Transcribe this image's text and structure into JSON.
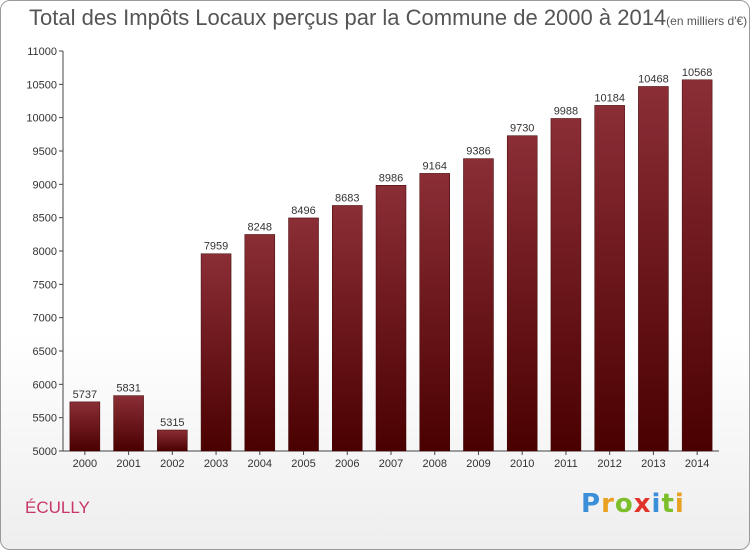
{
  "chart_data": {
    "type": "bar",
    "title": "Total des Impôts Locaux perçus par la Commune de 2000 à 2014",
    "subtitle": "(en milliers d'€)",
    "categories": [
      "2000",
      "2001",
      "2002",
      "2003",
      "2004",
      "2005",
      "2006",
      "2007",
      "2008",
      "2009",
      "2010",
      "2011",
      "2012",
      "2013",
      "2014"
    ],
    "values": [
      5737,
      5831,
      5315,
      7959,
      8248,
      8496,
      8683,
      8986,
      9164,
      9386,
      9730,
      9988,
      10184,
      10468,
      10568
    ],
    "value_labels": [
      "5737",
      "5831",
      "5315",
      "7959",
      "8248",
      "8496",
      "8683",
      "8986",
      "9164",
      "9386",
      "9730",
      "9988",
      "10184",
      "10468",
      "10568"
    ],
    "ylim": [
      5000,
      11000
    ],
    "yticks": [
      5000,
      5500,
      6000,
      6500,
      7000,
      7500,
      8000,
      8500,
      9000,
      9500,
      10000,
      10500,
      11000
    ],
    "ytick_labels": [
      "5000",
      "5500",
      "6000",
      "6500",
      "7000",
      "7500",
      "8000",
      "8500",
      "9000",
      "9500",
      "10000",
      "10500",
      "11000"
    ],
    "grid": false,
    "bar_color_top": "#8b2e36",
    "bar_color_bottom": "#4a0000"
  },
  "commune": "ÉCULLY",
  "logo": {
    "letters": [
      "P",
      "r",
      "o",
      "x",
      "i",
      "t",
      "i"
    ],
    "colors": [
      "#3b8ed8",
      "#e8a020",
      "#7cbf2a",
      "#e2332a",
      "#3b8ed8",
      "#7cbf2a",
      "#e8a020"
    ]
  }
}
